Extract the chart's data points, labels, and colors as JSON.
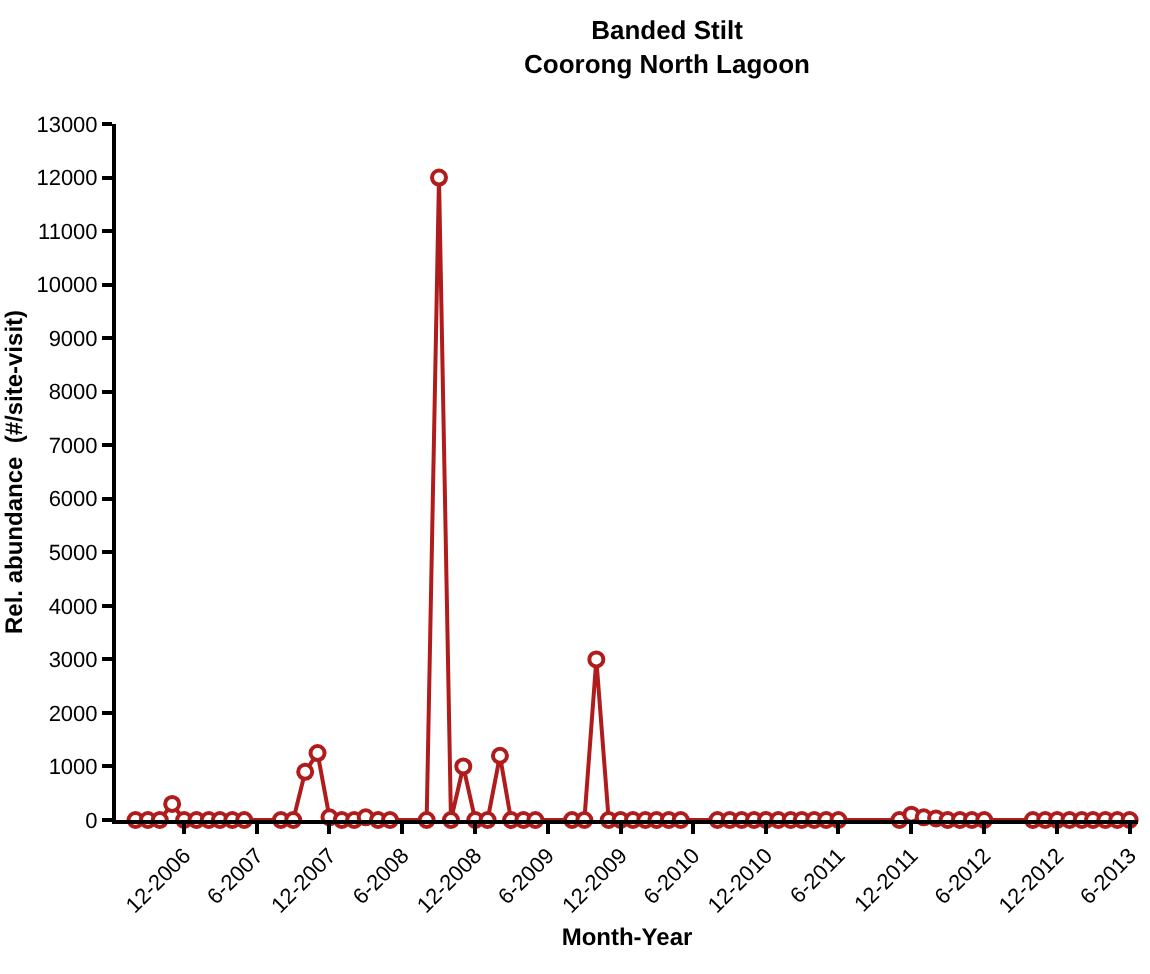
{
  "chart_data": {
    "type": "line",
    "title": "Banded Stilt\nCoorong North Lagoon",
    "xlabel": "Month-Year",
    "ylabel": "Rel. abundance  (#/site-visit)",
    "x": [
      "2006-08",
      "2006-09",
      "2006-10",
      "2006-11",
      "2006-12",
      "2007-01",
      "2007-02",
      "2007-03",
      "2007-04",
      "2007-05",
      "2007-08",
      "2007-09",
      "2007-10",
      "2007-11",
      "2007-12",
      "2008-01",
      "2008-02",
      "2008-03",
      "2008-04",
      "2008-05",
      "2008-08",
      "2008-09",
      "2008-10",
      "2008-11",
      "2008-12",
      "2009-01",
      "2009-02",
      "2009-03",
      "2009-04",
      "2009-05",
      "2009-08",
      "2009-09",
      "2009-10",
      "2009-11",
      "2009-12",
      "2010-01",
      "2010-02",
      "2010-03",
      "2010-04",
      "2010-05",
      "2010-08",
      "2010-09",
      "2010-10",
      "2010-11",
      "2010-12",
      "2011-01",
      "2011-02",
      "2011-03",
      "2011-04",
      "2011-05",
      "2011-06",
      "2011-11",
      "2011-12",
      "2012-01",
      "2012-02",
      "2012-03",
      "2012-04",
      "2012-05",
      "2012-06",
      "2012-10",
      "2012-11",
      "2012-12",
      "2013-01",
      "2013-02",
      "2013-03",
      "2013-04",
      "2013-05",
      "2013-06"
    ],
    "series": [
      {
        "color": "#b01c1c",
        "values": [
          0,
          0,
          0,
          300,
          0,
          0,
          0,
          0,
          0,
          0,
          0,
          0,
          900,
          1250,
          50,
          0,
          0,
          50,
          0,
          0,
          0,
          12000,
          0,
          1000,
          0,
          0,
          1200,
          0,
          0,
          0,
          0,
          0,
          3000,
          0,
          0,
          0,
          0,
          0,
          0,
          0,
          0,
          0,
          0,
          0,
          0,
          0,
          0,
          0,
          0,
          0,
          0,
          0,
          100,
          50,
          30,
          0,
          0,
          0,
          0,
          0,
          0,
          0,
          0,
          0,
          0,
          0,
          0,
          0
        ]
      }
    ],
    "xlim": [
      "2006-06-13",
      "2013-06-22"
    ],
    "xticks": [
      {
        "value": "2006-12",
        "label": "12-2006"
      },
      {
        "value": "2007-06",
        "label": "6-2007"
      },
      {
        "value": "2007-12",
        "label": "12-2007"
      },
      {
        "value": "2008-06",
        "label": "6-2008"
      },
      {
        "value": "2008-12",
        "label": "12-2008"
      },
      {
        "value": "2009-06",
        "label": "6-2009"
      },
      {
        "value": "2009-12",
        "label": "12-2009"
      },
      {
        "value": "2010-06",
        "label": "6-2010"
      },
      {
        "value": "2010-12",
        "label": "12-2010"
      },
      {
        "value": "2011-06",
        "label": "6-2011"
      },
      {
        "value": "2011-12",
        "label": "12-2011"
      },
      {
        "value": "2012-06",
        "label": "6-2012"
      },
      {
        "value": "2012-12",
        "label": "12-2012"
      },
      {
        "value": "2013-06",
        "label": "6-2013"
      }
    ],
    "ylim": [
      0,
      13000
    ],
    "yticks": [
      0,
      1000,
      2000,
      3000,
      4000,
      5000,
      6000,
      7000,
      8000,
      9000,
      10000,
      11000,
      12000,
      13000
    ],
    "grid": false,
    "marker": "circle",
    "line_style": "solid"
  }
}
